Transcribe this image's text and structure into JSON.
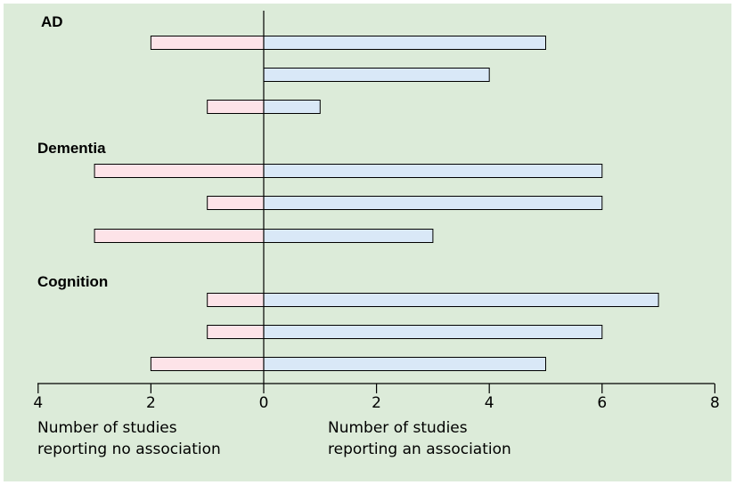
{
  "chart_data": {
    "type": "bar",
    "orientation": "horizontal-diverging",
    "groups": [
      {
        "label": "AD",
        "rows": [
          {
            "no_association": 2,
            "association": 5
          },
          {
            "no_association": 0,
            "association": 4
          },
          {
            "no_association": 1,
            "association": 1
          }
        ]
      },
      {
        "label": "Dementia",
        "rows": [
          {
            "no_association": 3,
            "association": 6
          },
          {
            "no_association": 1,
            "association": 6
          },
          {
            "no_association": 3,
            "association": 3
          }
        ]
      },
      {
        "label": "Cognition",
        "rows": [
          {
            "no_association": 1,
            "association": 7
          },
          {
            "no_association": 1,
            "association": 6
          },
          {
            "no_association": 2,
            "association": 5
          }
        ]
      }
    ],
    "x_ticks": [
      "4",
      "2",
      "0",
      "2",
      "4",
      "6",
      "8"
    ],
    "xlim_left": 4,
    "xlim_right": 8,
    "left_caption": [
      "Number of studies",
      "reporting no association"
    ],
    "right_caption": [
      "Number of studies",
      "reporting an association"
    ],
    "colors": {
      "background": "#dcebd9",
      "no_association": "#fde3e8",
      "association": "#d9e8f7",
      "outline": "#000000"
    }
  }
}
